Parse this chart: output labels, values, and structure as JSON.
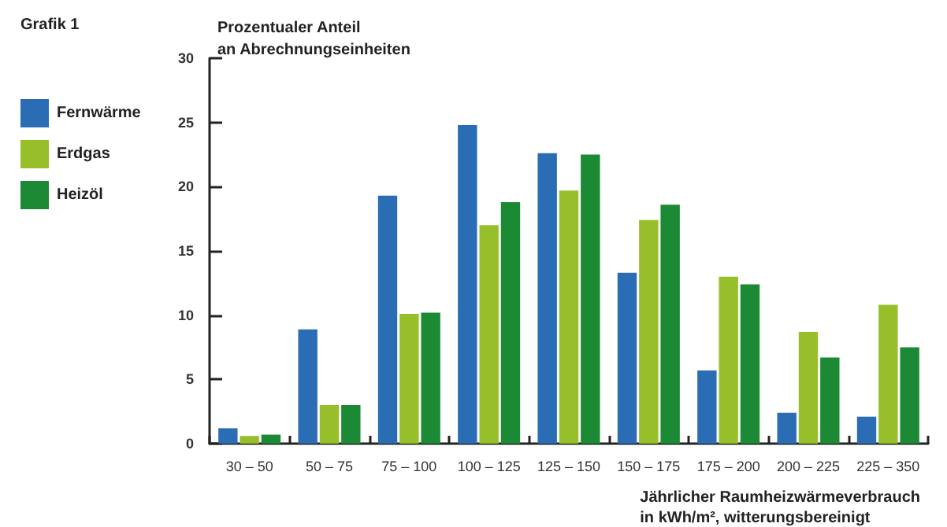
{
  "chart_data": {
    "type": "bar",
    "title": "Grafik 1",
    "ylabel": "Prozentualer Anteil\nan Abrechnungseinheiten",
    "xlabel": "Jährlicher Raumheizwärmeverbrauch\nin kWh/m², witterungsbereinigt",
    "categories": [
      "30 – 50",
      "50 – 75",
      "75 – 100",
      "100 – 125",
      "125 – 150",
      "150 – 175",
      "175 – 200",
      "200 – 225",
      "225 – 350"
    ],
    "series": [
      {
        "name": "Fernwärme",
        "color": "#2a6db5",
        "values": [
          1.2,
          8.9,
          19.3,
          24.8,
          22.6,
          13.3,
          5.7,
          2.4,
          2.1
        ]
      },
      {
        "name": "Erdgas",
        "color": "#97bf2a",
        "values": [
          0.6,
          3.0,
          10.1,
          17.0,
          19.7,
          17.4,
          13.0,
          8.7,
          10.8
        ]
      },
      {
        "name": "Heizöl",
        "color": "#1c8a35",
        "values": [
          0.7,
          3.0,
          10.2,
          18.8,
          22.5,
          18.6,
          12.4,
          6.7,
          7.5
        ]
      }
    ],
    "ylim": [
      0,
      30
    ],
    "yticks": [
      0,
      5,
      10,
      15,
      20,
      25,
      30
    ],
    "grid": false,
    "legend": "left"
  }
}
